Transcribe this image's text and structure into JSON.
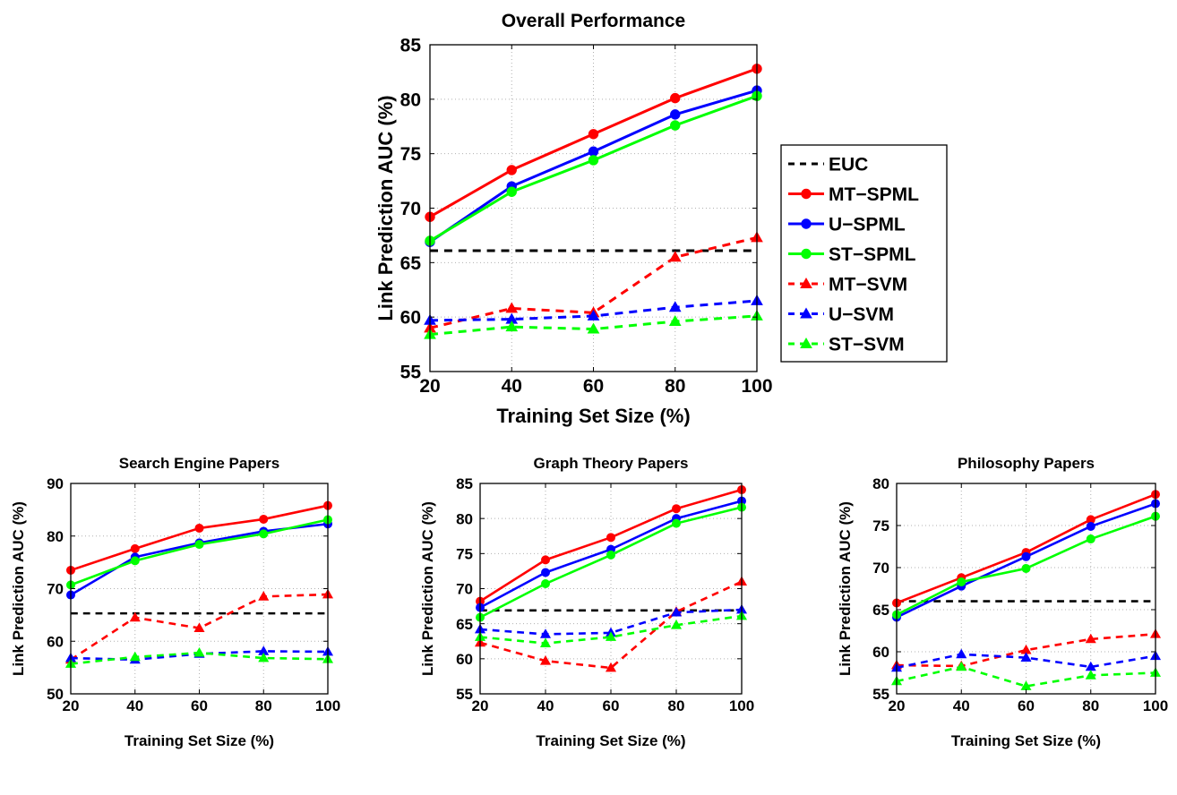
{
  "chart_data": [
    {
      "type": "line",
      "title": "Overall Performance",
      "xlabel": "Training Set Size (%)",
      "ylabel": "Link Prediction AUC (%)",
      "x": [
        20,
        40,
        60,
        80,
        100
      ],
      "xlim": [
        20,
        100
      ],
      "ylim": [
        55,
        85
      ],
      "yticks": [
        55,
        60,
        65,
        70,
        75,
        80,
        85
      ],
      "grid": true,
      "legend": "right",
      "series": [
        {
          "name": "EUC",
          "color": "#000000",
          "style": "dashed",
          "marker": "none",
          "values": [
            66.1,
            66.1,
            66.1,
            66.1,
            66.1
          ]
        },
        {
          "name": "MT−SPML",
          "color": "#ff0000",
          "style": "solid",
          "marker": "circle",
          "values": [
            69.2,
            73.5,
            76.8,
            80.1,
            82.8
          ]
        },
        {
          "name": "U−SPML",
          "color": "#0000ff",
          "style": "solid",
          "marker": "circle",
          "values": [
            66.9,
            72.0,
            75.2,
            78.6,
            80.8
          ]
        },
        {
          "name": "ST−SPML",
          "color": "#00ff00",
          "style": "solid",
          "marker": "circle",
          "values": [
            67.0,
            71.5,
            74.4,
            77.6,
            80.3
          ]
        },
        {
          "name": "MT−SVM",
          "color": "#ff0000",
          "style": "dashed",
          "marker": "triangle",
          "values": [
            59.0,
            60.8,
            60.4,
            65.5,
            67.3
          ]
        },
        {
          "name": "U−SVM",
          "color": "#0000ff",
          "style": "dashed",
          "marker": "triangle",
          "values": [
            59.7,
            59.8,
            60.1,
            60.9,
            61.5
          ]
        },
        {
          "name": "ST−SVM",
          "color": "#00ff00",
          "style": "dashed",
          "marker": "triangle",
          "values": [
            58.4,
            59.1,
            58.9,
            59.6,
            60.1
          ]
        }
      ]
    },
    {
      "type": "line",
      "title": "Search Engine Papers",
      "xlabel": "Training Set Size (%)",
      "ylabel": "Link Prediction AUC (%)",
      "x": [
        20,
        40,
        60,
        80,
        100
      ],
      "xlim": [
        20,
        100
      ],
      "ylim": [
        50,
        90
      ],
      "yticks": [
        50,
        60,
        70,
        80,
        90
      ],
      "grid": true,
      "series": [
        {
          "color": "#000000",
          "style": "dashed",
          "marker": "none",
          "values": [
            65.3,
            65.3,
            65.3,
            65.3,
            65.3
          ]
        },
        {
          "color": "#ff0000",
          "style": "solid",
          "marker": "circle",
          "values": [
            73.5,
            77.6,
            81.5,
            83.2,
            85.8
          ]
        },
        {
          "color": "#0000ff",
          "style": "solid",
          "marker": "circle",
          "values": [
            68.8,
            76.0,
            78.7,
            80.9,
            82.3
          ]
        },
        {
          "color": "#00ff00",
          "style": "solid",
          "marker": "circle",
          "values": [
            70.7,
            75.3,
            78.4,
            80.4,
            83.1
          ]
        },
        {
          "color": "#ff0000",
          "style": "dashed",
          "marker": "triangle",
          "values": [
            56.5,
            64.5,
            62.5,
            68.5,
            68.9
          ]
        },
        {
          "color": "#0000ff",
          "style": "dashed",
          "marker": "triangle",
          "values": [
            56.8,
            56.5,
            57.6,
            58.1,
            58.0
          ]
        },
        {
          "color": "#00ff00",
          "style": "dashed",
          "marker": "triangle",
          "values": [
            55.7,
            57.0,
            57.8,
            56.8,
            56.6
          ]
        }
      ]
    },
    {
      "type": "line",
      "title": "Graph Theory Papers",
      "xlabel": "Training Set Size (%)",
      "ylabel": "Link Prediction AUC (%)",
      "x": [
        20,
        40,
        60,
        80,
        100
      ],
      "xlim": [
        20,
        100
      ],
      "ylim": [
        55,
        85
      ],
      "yticks": [
        55,
        60,
        65,
        70,
        75,
        80,
        85
      ],
      "grid": true,
      "series": [
        {
          "color": "#000000",
          "style": "dashed",
          "marker": "none",
          "values": [
            66.9,
            66.9,
            66.9,
            66.9,
            66.9
          ]
        },
        {
          "color": "#ff0000",
          "style": "solid",
          "marker": "circle",
          "values": [
            68.2,
            74.1,
            77.3,
            81.4,
            84.1
          ]
        },
        {
          "color": "#0000ff",
          "style": "solid",
          "marker": "circle",
          "values": [
            67.3,
            72.3,
            75.6,
            80.0,
            82.5
          ]
        },
        {
          "color": "#00ff00",
          "style": "solid",
          "marker": "circle",
          "values": [
            65.9,
            70.7,
            74.8,
            79.3,
            81.6
          ]
        },
        {
          "color": "#ff0000",
          "style": "dashed",
          "marker": "triangle",
          "values": [
            62.3,
            59.7,
            58.7,
            66.7,
            71.0
          ]
        },
        {
          "color": "#0000ff",
          "style": "dashed",
          "marker": "triangle",
          "values": [
            64.2,
            63.5,
            63.7,
            66.6,
            67.0
          ]
        },
        {
          "color": "#00ff00",
          "style": "dashed",
          "marker": "triangle",
          "values": [
            63.1,
            62.2,
            63.1,
            64.8,
            66.1
          ]
        }
      ]
    },
    {
      "type": "line",
      "title": "Philosophy Papers",
      "xlabel": "Training Set Size (%)",
      "ylabel": "Link Prediction AUC (%)",
      "x": [
        20,
        40,
        60,
        80,
        100
      ],
      "xlim": [
        20,
        100
      ],
      "ylim": [
        55,
        80
      ],
      "yticks": [
        55,
        60,
        65,
        70,
        75,
        80
      ],
      "grid": true,
      "series": [
        {
          "color": "#000000",
          "style": "dashed",
          "marker": "none",
          "values": [
            66.0,
            66.0,
            66.0,
            66.0,
            66.0
          ]
        },
        {
          "color": "#ff0000",
          "style": "solid",
          "marker": "circle",
          "values": [
            65.8,
            68.8,
            71.8,
            75.7,
            78.7
          ]
        },
        {
          "color": "#0000ff",
          "style": "solid",
          "marker": "circle",
          "values": [
            64.1,
            67.8,
            71.3,
            74.9,
            77.6
          ]
        },
        {
          "color": "#00ff00",
          "style": "solid",
          "marker": "circle",
          "values": [
            64.4,
            68.3,
            69.9,
            73.4,
            76.1
          ]
        },
        {
          "color": "#ff0000",
          "style": "dashed",
          "marker": "triangle",
          "values": [
            58.4,
            58.3,
            60.2,
            61.5,
            62.1
          ]
        },
        {
          "color": "#0000ff",
          "style": "dashed",
          "marker": "triangle",
          "values": [
            58.1,
            59.7,
            59.3,
            58.2,
            59.5
          ]
        },
        {
          "color": "#00ff00",
          "style": "dashed",
          "marker": "triangle",
          "values": [
            56.5,
            58.2,
            55.9,
            57.2,
            57.5
          ]
        }
      ]
    }
  ]
}
